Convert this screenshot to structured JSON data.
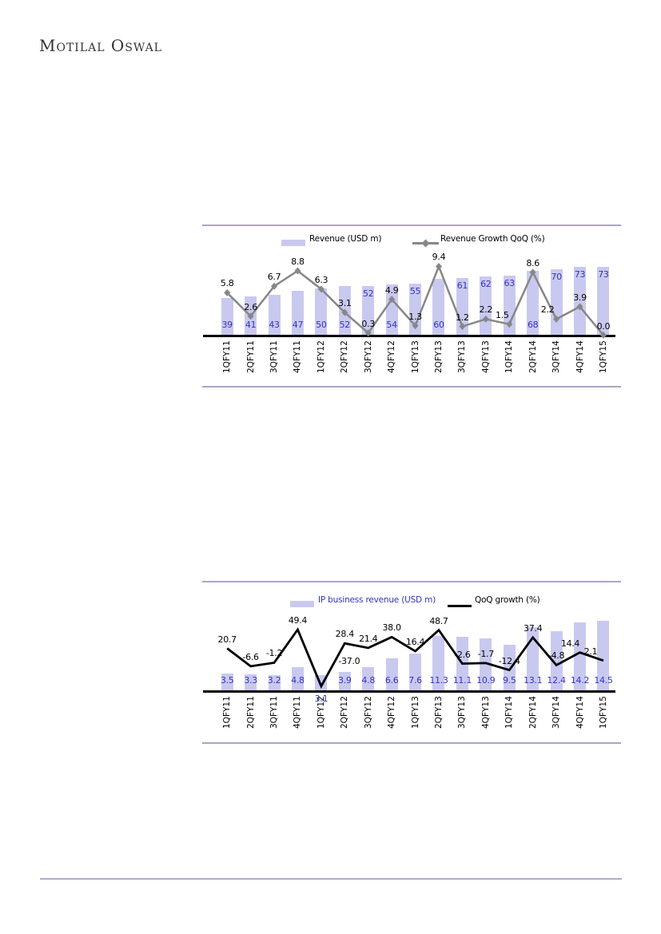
{
  "page": {
    "logo": "Motilal Oswal"
  },
  "charts": [
    {
      "name": "quarterly-revenue",
      "legend": [
        {
          "label": "Revenue (USD m)",
          "swatch": "bar",
          "color": "#C9C9F0",
          "text_color": "#000000"
        },
        {
          "label": "Revenue Growth QoQ (%)",
          "swatch": "line-diamond",
          "color": "#878787",
          "text_color": "#000000"
        }
      ],
      "chart_data": {
        "type": "bar+line",
        "categories": [
          "1QFY11",
          "2QFY11",
          "3QFY11",
          "4QFY11",
          "1QFY12",
          "2QFY12",
          "3QFY12",
          "4QFY12",
          "1QFY13",
          "2QFY13",
          "3QFY13",
          "4QFY13",
          "1QFY14",
          "2QFY14",
          "3QFY14",
          "4QFY14",
          "1QFY15"
        ],
        "series": [
          {
            "name": "Revenue (USD m)",
            "type": "bar",
            "values": [
              39,
              41,
              43,
              47,
              50,
              52,
              52,
              54,
              55,
              60,
              61,
              62,
              63,
              68,
              70,
              73,
              73
            ],
            "color": "#C9C9F0",
            "label_color": "#3333C4",
            "label_format": "int"
          },
          {
            "name": "Revenue Growth QoQ (%)",
            "type": "line",
            "marker": "diamond",
            "values": [
              5.8,
              2.6,
              6.7,
              8.8,
              6.3,
              3.1,
              0.3,
              4.9,
              1.3,
              9.4,
              1.2,
              2.2,
              1.5,
              8.6,
              2.2,
              3.9,
              0.0
            ],
            "color": "#878787",
            "label_color": "#000000",
            "label_format": "1dp"
          }
        ],
        "axes_hidden": true,
        "bar_axis_range": [
          0,
          100
        ],
        "line_axis_range": [
          0,
          13
        ],
        "legend_position": "top",
        "grid": false,
        "layout": {
          "bar_label_pos": [
            "base",
            "base",
            "base",
            "base",
            "base",
            "base",
            "end",
            "base",
            "end",
            "base",
            "end",
            "end",
            "end",
            "base",
            "end",
            "end",
            "end"
          ],
          "line_label_offsets": {
            "12": [
              -9,
              0
            ],
            "14": [
              -11,
              0
            ]
          }
        }
      }
    },
    {
      "name": "ip-business-revenue",
      "legend": [
        {
          "label": "IP business revenue (USD m)",
          "swatch": "bar",
          "color": "#C9C9F0",
          "text_color": "#3333C4"
        },
        {
          "label": "QoQ growth (%)",
          "swatch": "line",
          "color": "#000000",
          "text_color": "#000000"
        }
      ],
      "chart_data": {
        "type": "bar+line",
        "categories": [
          "1QFY11",
          "2QFY11",
          "3QFY11",
          "4QFY11",
          "1QFY12",
          "2QFY12",
          "3QFY12",
          "4QFY12",
          "1QFY13",
          "2QFY13",
          "3QFY13",
          "4QFY13",
          "1QFY14",
          "2QFY14",
          "3QFY14",
          "4QFY14",
          "1QFY15"
        ],
        "series": [
          {
            "name": "IP business revenue (USD m)",
            "type": "bar",
            "values": [
              3.5,
              3.3,
              3.2,
              4.8,
              3.1,
              3.9,
              4.8,
              6.6,
              7.6,
              11.3,
              11.1,
              10.9,
              9.5,
              13.1,
              12.4,
              14.2,
              14.5
            ],
            "color": "#C9C9F0",
            "label_color": "#3333C4",
            "label_format": "1dp"
          },
          {
            "name": "QoQ growth (%)",
            "type": "line",
            "marker": "none",
            "values": [
              20.7,
              -6.6,
              -1.2,
              49.4,
              -37.0,
              28.4,
              21.4,
              38.0,
              16.4,
              48.7,
              -2.6,
              -1.7,
              -12.4,
              37.4,
              -4.8,
              14.4,
              2.1
            ],
            "color": "#000000",
            "label_color": "#000000",
            "label_format": "1dp"
          }
        ],
        "axes_hidden": true,
        "bar_axis_range": [
          0,
          16
        ],
        "line_axis_range": [
          -42,
          60
        ],
        "legend_position": "top",
        "grid": false,
        "layout": {
          "bar_label_pos": [
            "base",
            "base",
            "base",
            "base",
            "below",
            "base",
            "base",
            "base",
            "base",
            "base",
            "base",
            "base",
            "base",
            "base",
            "base",
            "base",
            "base"
          ],
          "line_label_offsets": {
            "4": [
              35,
              -20
            ],
            "15": [
              -12,
              0
            ],
            "16": [
              -16,
              0
            ]
          }
        }
      }
    }
  ]
}
